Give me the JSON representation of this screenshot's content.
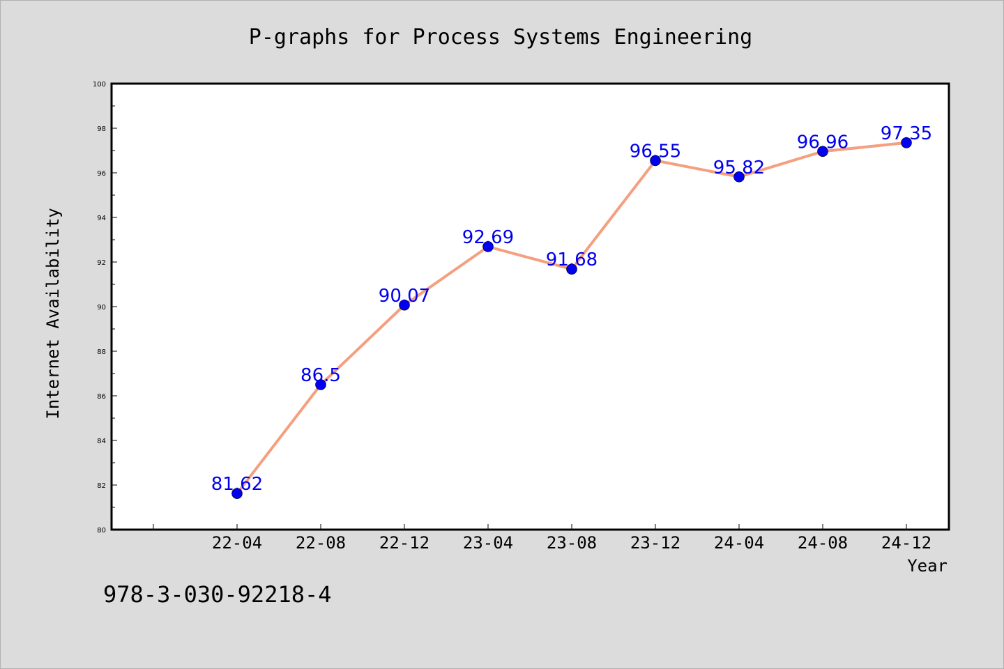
{
  "chart_data": {
    "type": "line",
    "title": "P-graphs for Process Systems Engineering",
    "xlabel": "Year",
    "ylabel": "Internet Availability",
    "categories": [
      "22-04",
      "22-08",
      "22-12",
      "23-04",
      "23-08",
      "23-12",
      "24-04",
      "24-08",
      "24-12"
    ],
    "series": [
      {
        "values": [
          81.62,
          86.5,
          90.07,
          92.69,
          91.68,
          96.55,
          95.82,
          96.96,
          97.35
        ],
        "labels": [
          "81.62",
          "86.5",
          "90.07",
          "92.69",
          "91.68",
          "96.55",
          "95.82",
          "96.96",
          "97.35"
        ],
        "line_color": "#f4a080",
        "marker_color": "#0000ee"
      }
    ],
    "ylim": [
      80,
      100
    ],
    "yticks": [
      80,
      82,
      84,
      86,
      88,
      90,
      92,
      94,
      96,
      98,
      100
    ],
    "ytick_labels": [
      "80",
      "82",
      "84",
      "86",
      "88",
      "90",
      "92",
      "94",
      "96",
      "98",
      "100"
    ],
    "grid": false,
    "legend": "none",
    "label_color": "#0000ee"
  },
  "annotation": "978-3-030-92218-4"
}
